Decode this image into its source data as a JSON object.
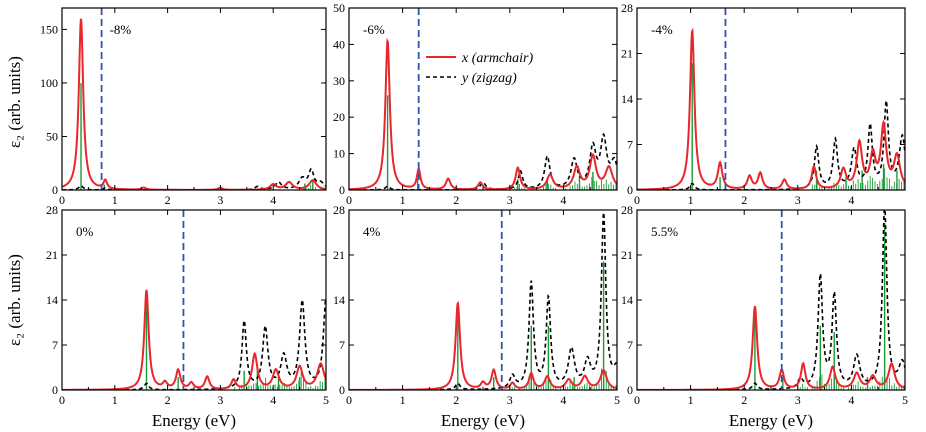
{
  "figure": {
    "ylabel": "ε₂ (arb. units)",
    "xlabel": "Energy (eV)",
    "legend": [
      {
        "text": "x (armchair)",
        "color": "#e8262b",
        "style": "solid"
      },
      {
        "text": "y (zigzag)",
        "color": "#000000",
        "style": "dashed"
      }
    ]
  },
  "chart_data": [
    {
      "type": "line",
      "label": "-8%",
      "xlim": [
        0,
        5
      ],
      "ylim": [
        0,
        170
      ],
      "yticks": [
        0,
        50,
        100,
        150
      ],
      "xticks": [
        0,
        1,
        2,
        3,
        4,
        5
      ],
      "gap": 0.75,
      "x_series": [
        [
          0.36,
          160,
          0.05
        ],
        [
          0.82,
          8,
          0.04
        ],
        [
          1.55,
          2,
          0.05
        ],
        [
          3.0,
          2,
          0.05
        ],
        [
          4.0,
          5,
          0.07
        ],
        [
          4.3,
          7,
          0.08
        ],
        [
          4.75,
          9,
          0.08
        ]
      ],
      "y_series": [
        [
          0.36,
          4,
          0.05
        ],
        [
          0.82,
          2,
          0.04
        ],
        [
          3.7,
          3,
          0.06
        ],
        [
          4.1,
          7,
          0.07
        ],
        [
          4.55,
          10,
          0.08
        ],
        [
          4.72,
          17,
          0.06
        ],
        [
          4.9,
          6,
          0.08
        ]
      ],
      "sticks": [
        [
          0.36,
          100
        ],
        [
          0.8,
          5
        ],
        [
          4.6,
          6
        ],
        [
          4.75,
          9
        ]
      ]
    },
    {
      "type": "line",
      "label": "-6%",
      "xlim": [
        0,
        5
      ],
      "ylim": [
        0,
        50
      ],
      "yticks": [
        0,
        10,
        20,
        30,
        40,
        50
      ],
      "xticks": [
        0,
        1,
        2,
        3,
        4,
        5
      ],
      "gap": 1.3,
      "x_series": [
        [
          0.72,
          41,
          0.05
        ],
        [
          1.3,
          5.5,
          0.04
        ],
        [
          1.85,
          3,
          0.05
        ],
        [
          2.45,
          2,
          0.05
        ],
        [
          3.15,
          6,
          0.05
        ],
        [
          3.75,
          4,
          0.07
        ],
        [
          4.25,
          6,
          0.07
        ],
        [
          4.55,
          9,
          0.07
        ],
        [
          4.85,
          6,
          0.08
        ]
      ],
      "y_series": [
        [
          0.72,
          1,
          0.05
        ],
        [
          2.5,
          2,
          0.06
        ],
        [
          3.2,
          5,
          0.05
        ],
        [
          3.7,
          9,
          0.06
        ],
        [
          4.2,
          8,
          0.07
        ],
        [
          4.55,
          11,
          0.07
        ],
        [
          4.75,
          13,
          0.07
        ],
        [
          4.95,
          7,
          0.08
        ]
      ],
      "sticks": [
        [
          0.72,
          26
        ],
        [
          1.28,
          3
        ],
        [
          3.15,
          3
        ],
        [
          3.7,
          3
        ],
        [
          4.3,
          4
        ],
        [
          4.55,
          5
        ]
      ]
    },
    {
      "type": "line",
      "label": "-4%",
      "xlim": [
        0,
        5
      ],
      "ylim": [
        0,
        28
      ],
      "yticks": [
        0,
        7,
        14,
        21,
        28
      ],
      "xticks": [
        0,
        1,
        2,
        3,
        4,
        5
      ],
      "gap": 1.65,
      "x_series": [
        [
          1.03,
          24.5,
          0.05
        ],
        [
          1.55,
          4,
          0.05
        ],
        [
          2.1,
          2,
          0.05
        ],
        [
          2.3,
          2.5,
          0.05
        ],
        [
          2.75,
          1.5,
          0.05
        ],
        [
          3.3,
          3.5,
          0.05
        ],
        [
          3.85,
          3,
          0.06
        ],
        [
          4.15,
          7,
          0.06
        ],
        [
          4.4,
          5,
          0.06
        ],
        [
          4.6,
          9.5,
          0.06
        ],
        [
          4.85,
          5,
          0.07
        ]
      ],
      "y_series": [
        [
          1.03,
          1,
          0.05
        ],
        [
          3.35,
          6.5,
          0.05
        ],
        [
          3.7,
          7.5,
          0.05
        ],
        [
          4.05,
          6,
          0.06
        ],
        [
          4.35,
          9.5,
          0.05
        ],
        [
          4.65,
          13,
          0.05
        ],
        [
          4.95,
          8,
          0.07
        ]
      ],
      "sticks": [
        [
          1.03,
          19.5
        ],
        [
          1.55,
          2
        ],
        [
          3.35,
          3
        ],
        [
          3.9,
          2
        ],
        [
          4.2,
          3
        ],
        [
          4.6,
          4
        ],
        [
          4.85,
          3
        ]
      ]
    },
    {
      "type": "line",
      "label": "0%",
      "xlim": [
        0,
        5
      ],
      "ylim": [
        0,
        28
      ],
      "yticks": [
        0,
        7,
        14,
        21,
        28
      ],
      "xticks": [
        0,
        1,
        2,
        3,
        4,
        5
      ],
      "gap": 2.3,
      "x_series": [
        [
          1.6,
          15.5,
          0.05
        ],
        [
          1.95,
          1,
          0.05
        ],
        [
          2.2,
          3,
          0.05
        ],
        [
          2.45,
          1,
          0.05
        ],
        [
          2.75,
          2,
          0.05
        ],
        [
          3.25,
          1.5,
          0.05
        ],
        [
          3.65,
          5.5,
          0.06
        ],
        [
          4.05,
          3,
          0.07
        ],
        [
          4.5,
          3.5,
          0.07
        ],
        [
          4.9,
          4,
          0.08
        ]
      ],
      "y_series": [
        [
          1.6,
          1,
          0.05
        ],
        [
          3.45,
          10.5,
          0.05
        ],
        [
          3.85,
          9.5,
          0.06
        ],
        [
          4.2,
          5,
          0.07
        ],
        [
          4.55,
          13.5,
          0.06
        ],
        [
          5.0,
          14,
          0.06
        ]
      ],
      "sticks": [
        [
          1.6,
          13.5
        ],
        [
          2.2,
          2
        ],
        [
          3.45,
          3
        ],
        [
          3.7,
          4
        ],
        [
          4.1,
          2
        ],
        [
          4.5,
          2
        ]
      ]
    },
    {
      "type": "line",
      "label": "4%",
      "xlim": [
        0,
        5
      ],
      "ylim": [
        0,
        28
      ],
      "yticks": [
        0,
        7,
        14,
        21,
        28
      ],
      "xticks": [
        0,
        1,
        2,
        3,
        4,
        5
      ],
      "gap": 2.85,
      "x_series": [
        [
          2.03,
          13.5,
          0.05
        ],
        [
          2.5,
          1,
          0.05
        ],
        [
          2.7,
          3,
          0.05
        ],
        [
          3.05,
          1,
          0.05
        ],
        [
          3.4,
          2.5,
          0.05
        ],
        [
          3.7,
          2,
          0.06
        ],
        [
          4.1,
          1.5,
          0.07
        ],
        [
          4.4,
          2,
          0.07
        ],
        [
          4.75,
          3,
          0.07
        ]
      ],
      "y_series": [
        [
          2.03,
          1,
          0.05
        ],
        [
          3.05,
          2,
          0.06
        ],
        [
          3.4,
          16.5,
          0.05
        ],
        [
          3.72,
          14,
          0.05
        ],
        [
          4.15,
          6,
          0.07
        ],
        [
          4.45,
          4,
          0.07
        ],
        [
          4.75,
          27,
          0.05
        ],
        [
          5.0,
          3,
          0.08
        ]
      ],
      "sticks": [
        [
          2.03,
          12.5
        ],
        [
          2.7,
          2
        ],
        [
          3.4,
          10
        ],
        [
          3.72,
          10
        ],
        [
          4.75,
          20
        ],
        [
          4.2,
          2
        ]
      ]
    },
    {
      "type": "line",
      "label": "5.5%",
      "xlim": [
        0,
        5
      ],
      "ylim": [
        0,
        28
      ],
      "yticks": [
        0,
        7,
        14,
        21,
        28
      ],
      "xticks": [
        0,
        1,
        2,
        3,
        4,
        5
      ],
      "gap": 2.7,
      "x_series": [
        [
          2.2,
          13,
          0.05
        ],
        [
          2.7,
          3,
          0.05
        ],
        [
          3.1,
          4,
          0.05
        ],
        [
          3.65,
          3.5,
          0.06
        ],
        [
          4.1,
          2.5,
          0.07
        ],
        [
          4.4,
          2,
          0.07
        ],
        [
          4.75,
          4,
          0.07
        ]
      ],
      "y_series": [
        [
          2.2,
          1,
          0.05
        ],
        [
          3.05,
          1.5,
          0.06
        ],
        [
          3.42,
          17.5,
          0.05
        ],
        [
          3.68,
          14.5,
          0.05
        ],
        [
          4.1,
          5,
          0.07
        ],
        [
          4.62,
          28.5,
          0.05
        ],
        [
          4.95,
          4,
          0.08
        ]
      ],
      "sticks": [
        [
          2.2,
          11.5
        ],
        [
          2.72,
          2
        ],
        [
          3.42,
          10
        ],
        [
          3.68,
          9
        ],
        [
          4.62,
          26
        ],
        [
          4.3,
          2
        ]
      ]
    }
  ]
}
